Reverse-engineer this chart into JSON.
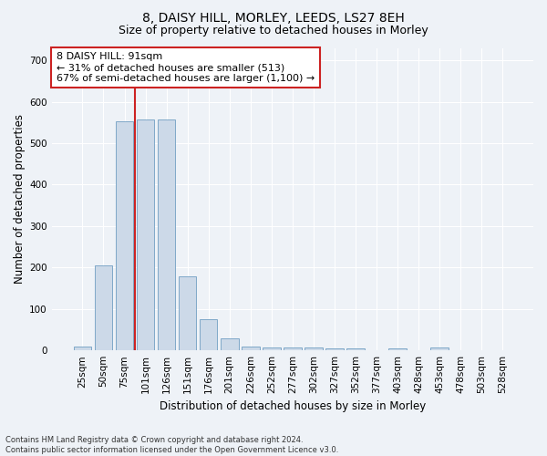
{
  "title1": "8, DAISY HILL, MORLEY, LEEDS, LS27 8EH",
  "title2": "Size of property relative to detached houses in Morley",
  "xlabel": "Distribution of detached houses by size in Morley",
  "ylabel": "Number of detached properties",
  "categories": [
    "25sqm",
    "50sqm",
    "75sqm",
    "101sqm",
    "126sqm",
    "151sqm",
    "176sqm",
    "201sqm",
    "226sqm",
    "252sqm",
    "277sqm",
    "302sqm",
    "327sqm",
    "352sqm",
    "377sqm",
    "403sqm",
    "428sqm",
    "453sqm",
    "478sqm",
    "503sqm",
    "528sqm"
  ],
  "values": [
    10,
    205,
    553,
    558,
    558,
    178,
    75,
    28,
    10,
    8,
    8,
    8,
    5,
    5,
    0,
    4,
    0,
    8,
    0,
    0,
    0
  ],
  "bar_color": "#ccd9e8",
  "bar_edge_color": "#7fa8c8",
  "vline_color": "#cc2222",
  "annotation_text": "8 DAISY HILL: 91sqm\n← 31% of detached houses are smaller (513)\n67% of semi-detached houses are larger (1,100) →",
  "annotation_box_color": "#ffffff",
  "annotation_box_edge": "#cc2222",
  "ylim": [
    0,
    730
  ],
  "yticks": [
    0,
    100,
    200,
    300,
    400,
    500,
    600,
    700
  ],
  "bg_color": "#eef2f7",
  "plot_bg_color": "#eef2f7",
  "grid_color": "#ffffff",
  "footnote": "Contains HM Land Registry data © Crown copyright and database right 2024.\nContains public sector information licensed under the Open Government Licence v3.0.",
  "title1_fontsize": 10,
  "title2_fontsize": 9,
  "xlabel_fontsize": 8.5,
  "ylabel_fontsize": 8.5,
  "tick_fontsize": 7.5,
  "annot_fontsize": 8
}
